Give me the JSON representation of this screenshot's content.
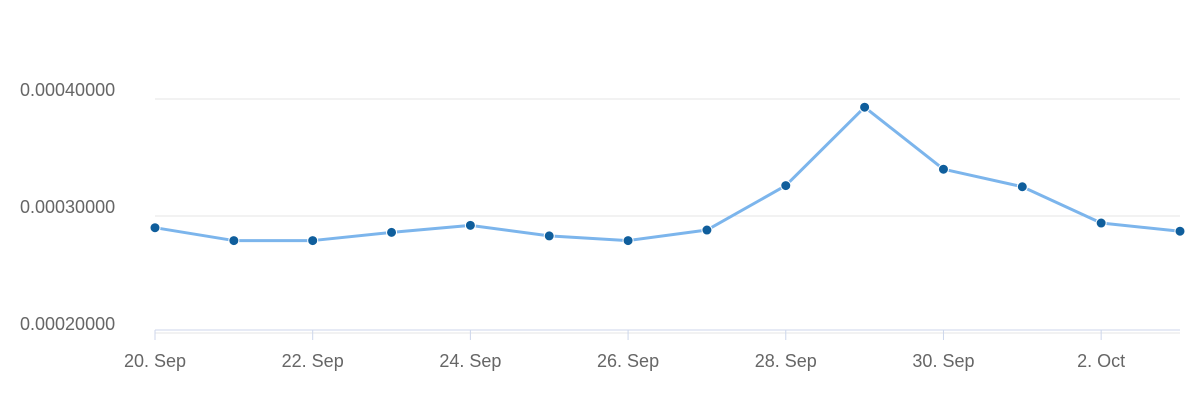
{
  "chart_data": {
    "type": "line",
    "categories": [
      "20. Sep",
      null,
      "22. Sep",
      null,
      "24. Sep",
      null,
      "26. Sep",
      null,
      "28. Sep",
      null,
      "30. Sep",
      null,
      "2. Oct",
      null
    ],
    "series": [
      {
        "color": "#7cb5ec",
        "marker_color": "#0f5e9c",
        "values": [
          0.00029,
          0.000279,
          0.000279,
          0.000286,
          0.000292,
          0.000283,
          0.000279,
          0.000288,
          0.000326,
          0.000393,
          0.00034,
          0.000325,
          0.000294,
          0.000287
        ]
      }
    ],
    "ylim": [
      0.0002,
      0.0004
    ],
    "yticks": [
      {
        "value": 0.0002,
        "label": "0.00020000"
      },
      {
        "value": 0.0003,
        "label": "0.00030000"
      },
      {
        "value": 0.0004,
        "label": "0.00040000"
      }
    ],
    "grid": true
  }
}
